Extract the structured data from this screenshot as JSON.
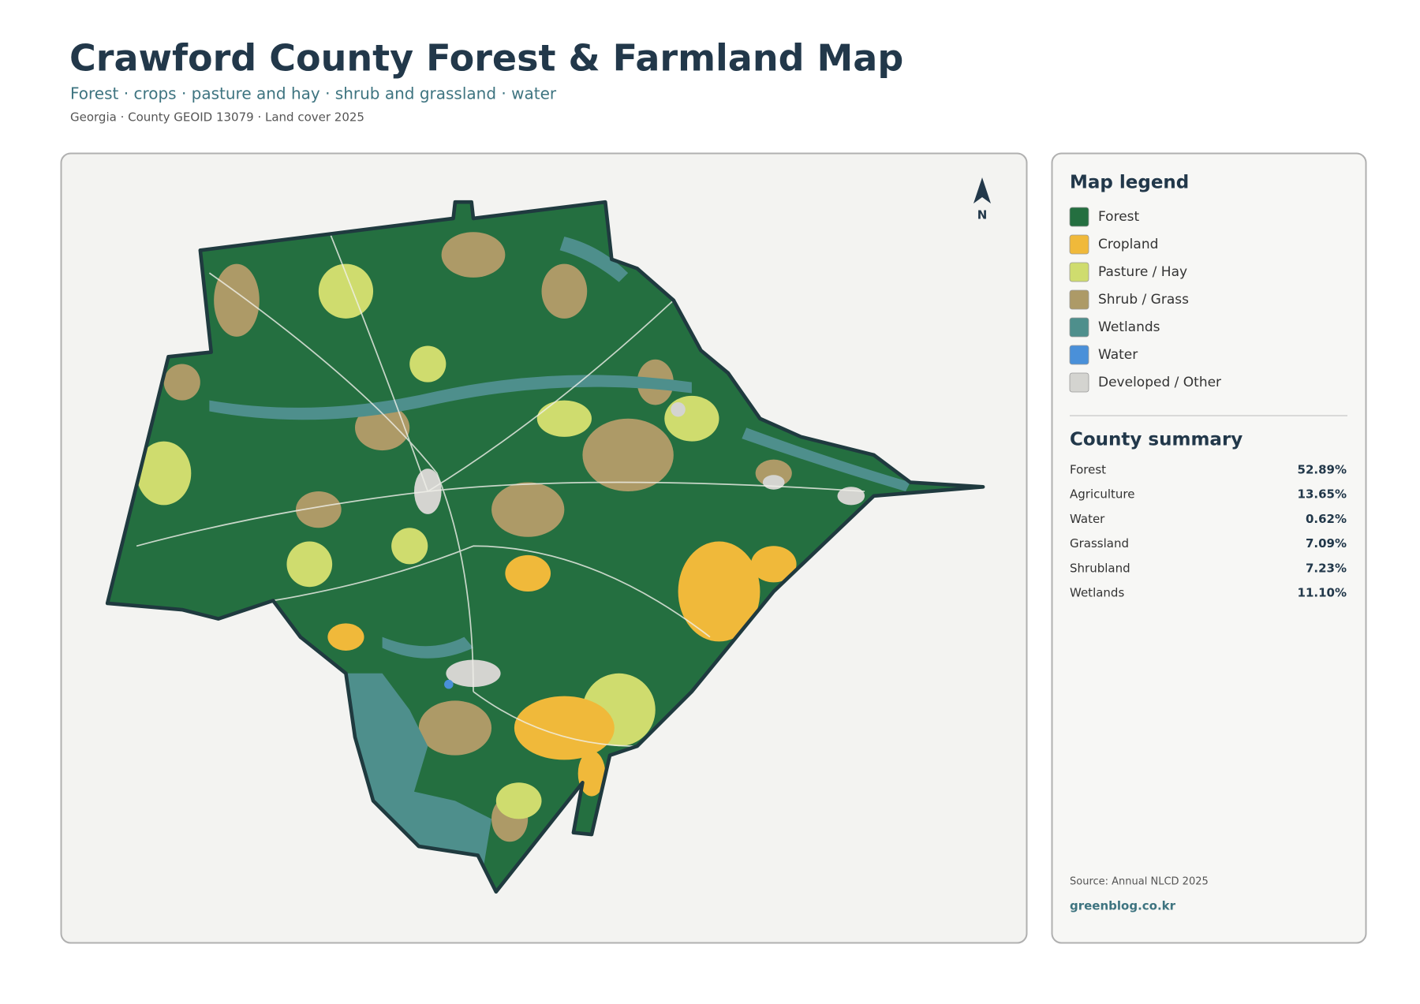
{
  "header": {
    "title": "Crawford County Forest & Farmland Map",
    "subtitle": "Forest · crops · pasture and hay · shrub and grassland · water",
    "meta": "Georgia · County GEOID 13079 · Land cover 2025"
  },
  "map": {
    "north_label": "N"
  },
  "legend": {
    "title": "Map legend",
    "items": [
      {
        "label": "Forest",
        "color": "#246f40"
      },
      {
        "label": "Cropland",
        "color": "#f0b93a"
      },
      {
        "label": "Pasture / Hay",
        "color": "#cfdc6e"
      },
      {
        "label": "Shrub / Grass",
        "color": "#ad9a67"
      },
      {
        "label": "Wetlands",
        "color": "#4e8f8c"
      },
      {
        "label": "Water",
        "color": "#4a90d9"
      },
      {
        "label": "Developed / Other",
        "color": "#d4d4d0"
      }
    ]
  },
  "summary": {
    "title": "County summary",
    "rows": [
      {
        "label": "Forest",
        "value": "52.89%"
      },
      {
        "label": "Agriculture",
        "value": "13.65%"
      },
      {
        "label": "Water",
        "value": "0.62%"
      },
      {
        "label": "Grassland",
        "value": "7.09%"
      },
      {
        "label": "Shrubland",
        "value": "7.23%"
      },
      {
        "label": "Wetlands",
        "value": "11.10%"
      }
    ]
  },
  "footer": {
    "source": "Source: Annual NLCD 2025",
    "site": "greenblog.co.kr"
  }
}
